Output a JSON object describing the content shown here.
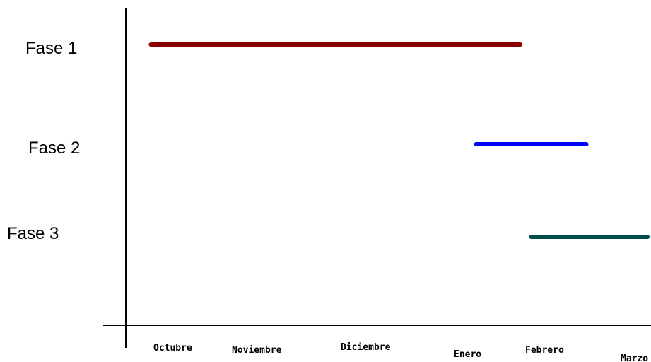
{
  "chart_data": {
    "type": "gantt",
    "title": "",
    "xlabel": "",
    "ylabel": "",
    "x_ticks": [
      "Octubre",
      "Noviembre",
      "Diciembre",
      "Enero",
      "Febrero",
      "Marzo"
    ],
    "series": [
      {
        "name": "Fase 1",
        "start": 0.15,
        "end": 3.5,
        "color": "#8b0000"
      },
      {
        "name": "Fase 2",
        "start": 3.1,
        "end": 4.1,
        "color": "#0000ff"
      },
      {
        "name": "Fase 3",
        "start": 3.6,
        "end": 4.85,
        "color": "#004d4d"
      }
    ],
    "grid": false,
    "legend": "none"
  }
}
